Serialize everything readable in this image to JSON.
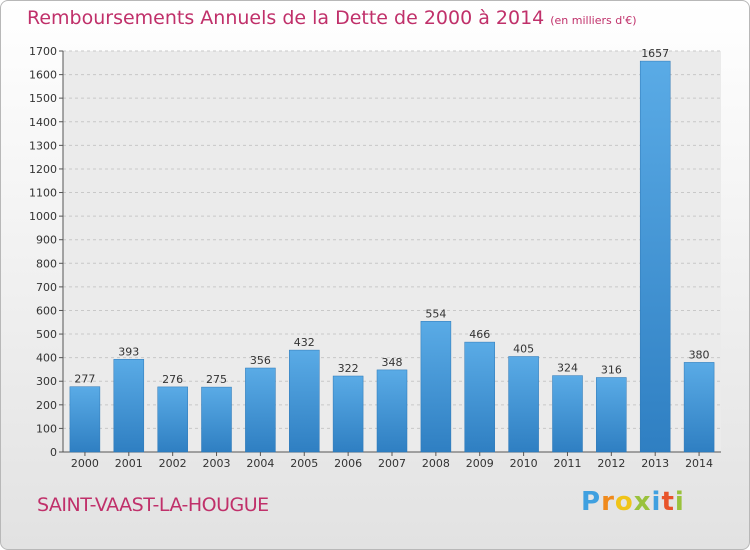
{
  "chart_data": {
    "type": "bar",
    "title": "Remboursements Annuels de la Dette de 2000 à 2014",
    "subtitle": "(en milliers d'€)",
    "categories": [
      "2000",
      "2001",
      "2002",
      "2003",
      "2004",
      "2005",
      "2006",
      "2007",
      "2008",
      "2009",
      "2010",
      "2011",
      "2012",
      "2013",
      "2014"
    ],
    "values": [
      277,
      393,
      276,
      275,
      356,
      432,
      322,
      348,
      554,
      466,
      405,
      324,
      316,
      1657,
      380
    ],
    "ylim": [
      0,
      1700
    ],
    "yticks": [
      0,
      100,
      200,
      300,
      400,
      500,
      600,
      700,
      800,
      900,
      1000,
      1100,
      1200,
      1300,
      1400,
      1500,
      1600,
      1700
    ],
    "grid": true,
    "bar_color": "#3f94d6"
  },
  "commune": "SAINT-VAAST-LA-HOUGUE",
  "brand": {
    "letters": [
      "P",
      "r",
      "o",
      "x",
      "i",
      "t",
      "i"
    ],
    "colors": [
      "#3fa0e0",
      "#f08a1c",
      "#f0c419",
      "#9ac23c",
      "#3fa0e0",
      "#e8542a",
      "#9ac23c"
    ]
  }
}
